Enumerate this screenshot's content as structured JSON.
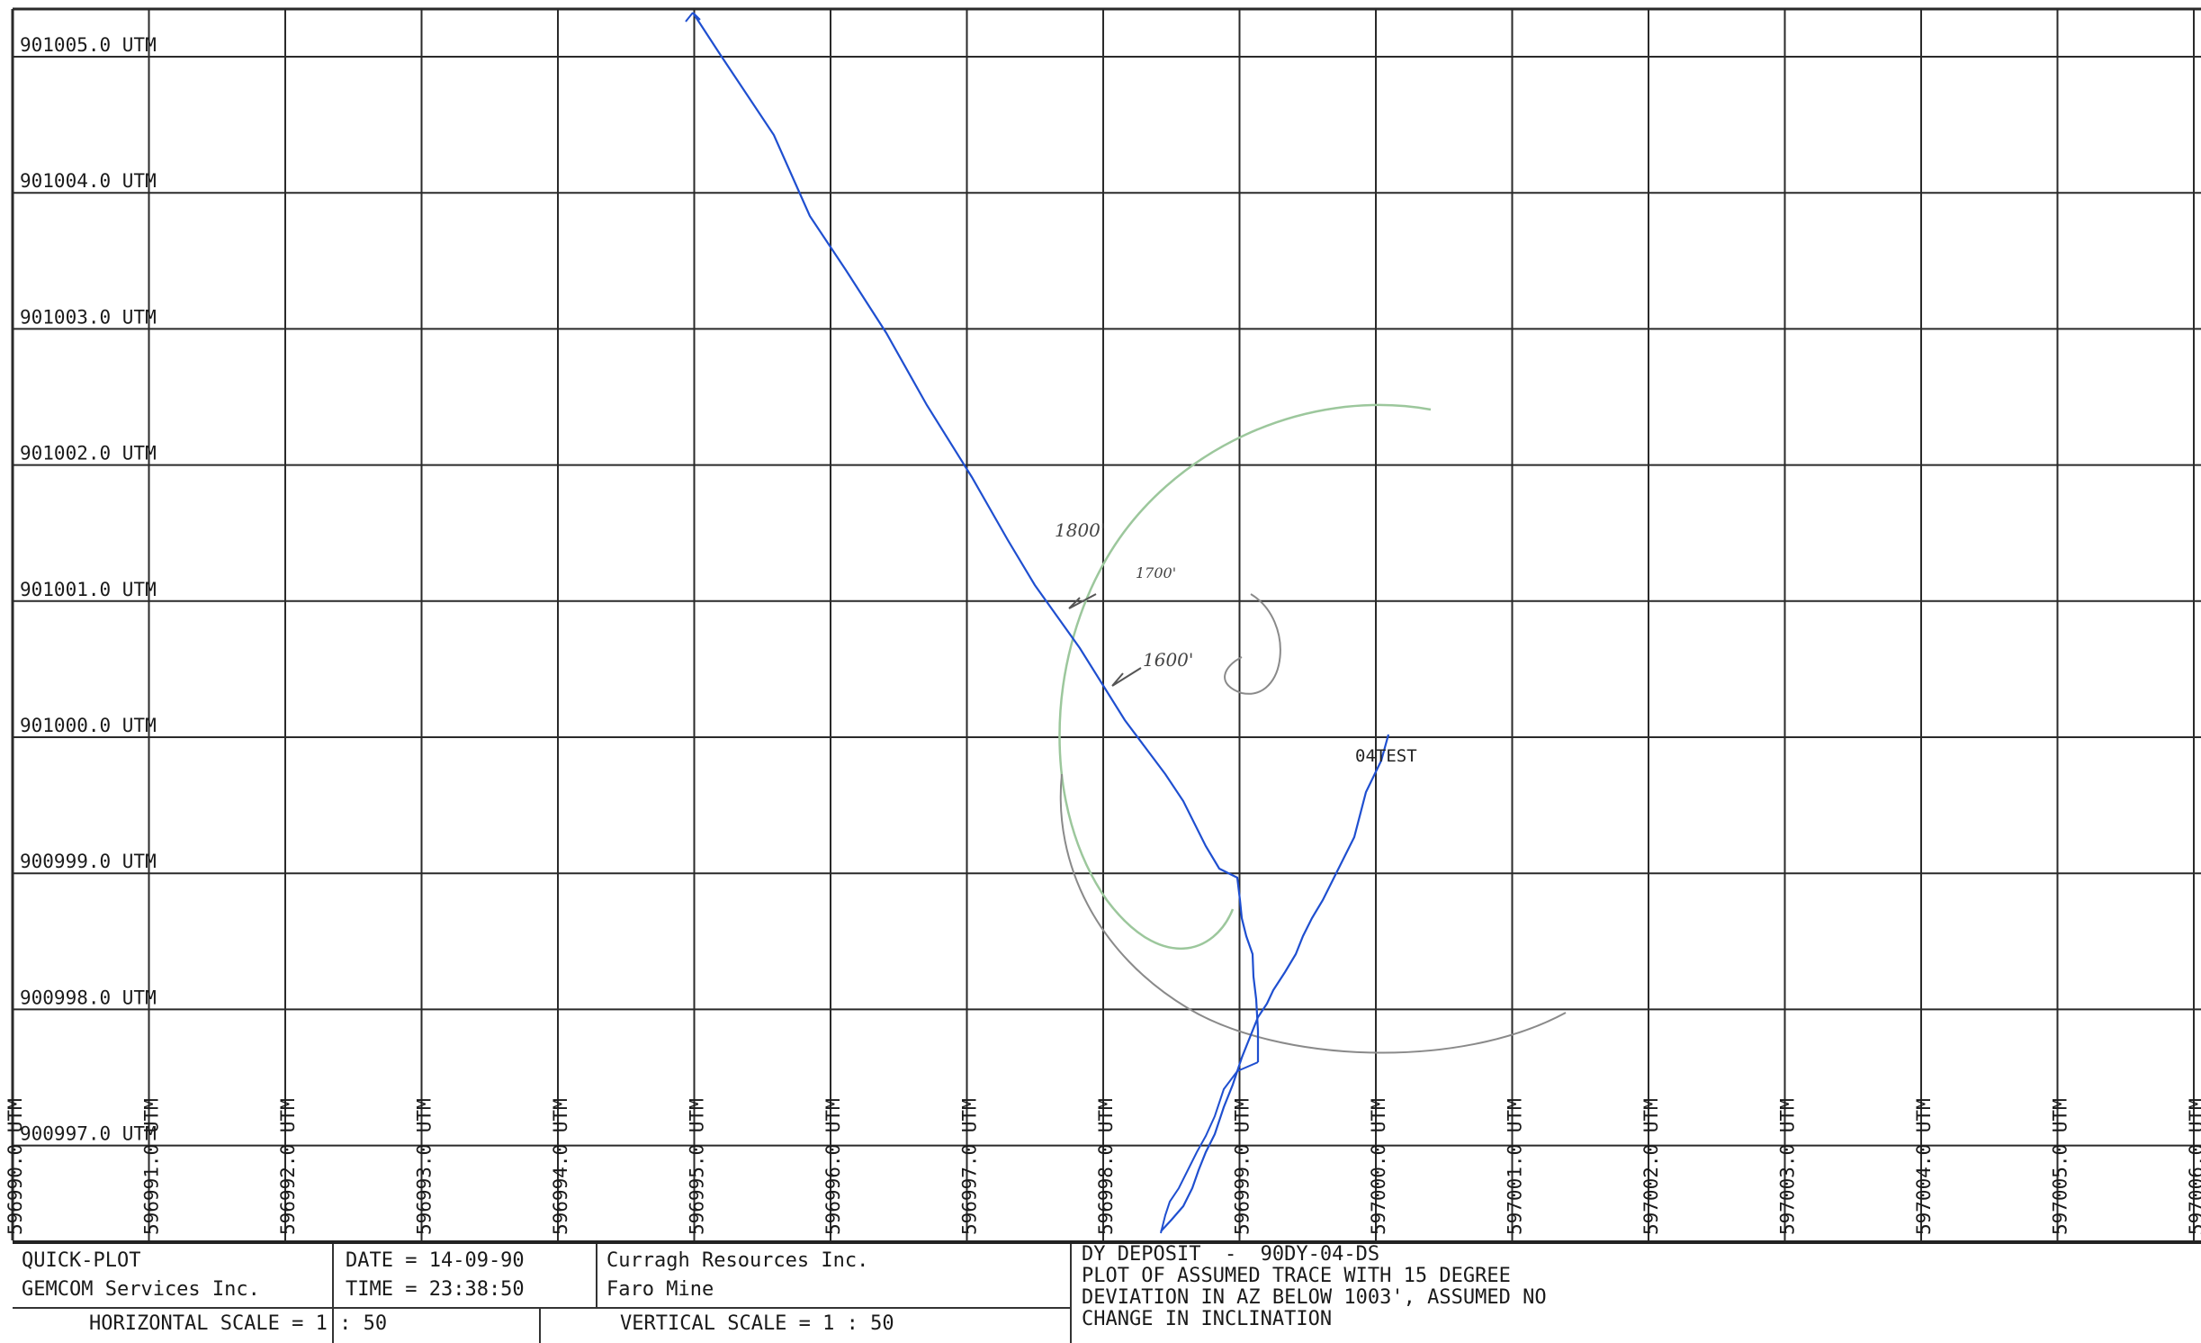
{
  "plot": {
    "y_labels": [
      "901005.0 UTM",
      "901004.0 UTM",
      "901003.0 UTM",
      "901002.0 UTM",
      "901001.0 UTM",
      "901000.0 UTM",
      "900999.0 UTM",
      "900998.0 UTM",
      "900997.0 UTM"
    ],
    "x_labels": [
      "596990.0 UTM",
      "596991.0 UTM",
      "596992.0 UTM",
      "596993.0 UTM",
      "596994.0 UTM",
      "596995.0 UTM",
      "596996.0 UTM",
      "596997.0 UTM",
      "596998.0 UTM",
      "596999.0 UTM",
      "597000.0 UTM",
      "597001.0 UTM",
      "597002.0 UTM",
      "597003.0 UTM",
      "597004.0 UTM",
      "597005.0 UTM",
      "597006.0 UTM"
    ],
    "hole_label": "04TEST",
    "annotations": [
      "1800'",
      "1700'",
      "1600'"
    ],
    "trace_color": "#1f4fd0",
    "pencil_color": "#7a7a7a",
    "green_color": "#9cc79c"
  },
  "title_block": {
    "program": "QUICK-PLOT",
    "vendor": "GEMCOM Services Inc.",
    "date": "DATE = 14-09-90",
    "time": "TIME = 23:38:50",
    "company": "Curragh Resources Inc.",
    "site": "Faro Mine",
    "h_scale": "HORIZONTAL SCALE = 1 : 50",
    "v_scale": "VERTICAL SCALE = 1 : 50",
    "desc_line1": "DY DEPOSIT  -  90DY-04-DS",
    "desc_line2": "PLOT OF ASSUMED TRACE WITH 15 DEGREE",
    "desc_line3": "DEVIATION IN AZ BELOW 1003', ASSUMED NO",
    "desc_line4": "CHANGE IN INCLINATION"
  }
}
